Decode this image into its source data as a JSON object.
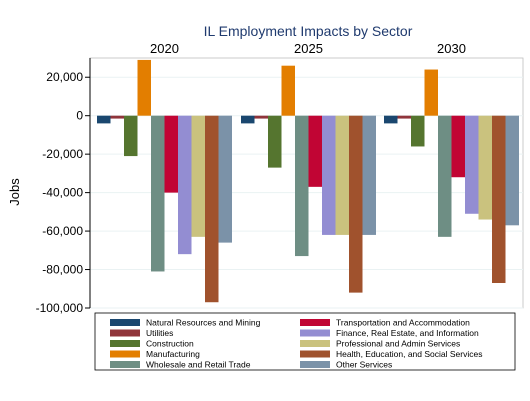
{
  "chart_data": {
    "type": "bar",
    "title": "IL Employment Impacts by Sector",
    "ylabel": "Jobs",
    "xlabel": "",
    "ylim": [
      -100000,
      30000
    ],
    "yticks": [
      20000,
      0,
      -20000,
      -40000,
      -60000,
      -80000,
      -100000
    ],
    "ytick_labels": [
      "20,000",
      "0",
      "-20,000",
      "-40,000",
      "-60,000",
      "-80,000",
      "-100,000"
    ],
    "grid": true,
    "legend_position": "bottom",
    "panels": [
      "2020",
      "2025",
      "2030"
    ],
    "series": [
      {
        "name": "Natural Resources and Mining",
        "color": "#1a476f",
        "values": [
          -4000,
          -4000,
          -4000
        ]
      },
      {
        "name": "Utilities",
        "color": "#90353b",
        "values": [
          -1500,
          -1500,
          -1500
        ]
      },
      {
        "name": "Construction",
        "color": "#55752f",
        "values": [
          -21000,
          -27000,
          -16000
        ]
      },
      {
        "name": "Manufacturing",
        "color": "#e37e00",
        "values": [
          29000,
          26000,
          24000
        ]
      },
      {
        "name": "Wholesale and Retail Trade",
        "color": "#6e8e84",
        "values": [
          -81000,
          -73000,
          -63000
        ]
      },
      {
        "name": "Transportation and Accommodation",
        "color": "#c10534",
        "values": [
          -40000,
          -37000,
          -32000
        ]
      },
      {
        "name": "Finance, Real Estate, and Information",
        "color": "#938dd2",
        "values": [
          -72000,
          -62000,
          -51000
        ]
      },
      {
        "name": "Professional and Admin Services",
        "color": "#cac27e",
        "values": [
          -63000,
          -62000,
          -54000
        ]
      },
      {
        "name": "Health, Education, and Social Services",
        "color": "#a0522d",
        "values": [
          -97000,
          -92000,
          -87000
        ]
      },
      {
        "name": "Other Services",
        "color": "#7b92a8",
        "values": [
          -66000,
          -62000,
          -57000
        ]
      }
    ]
  }
}
